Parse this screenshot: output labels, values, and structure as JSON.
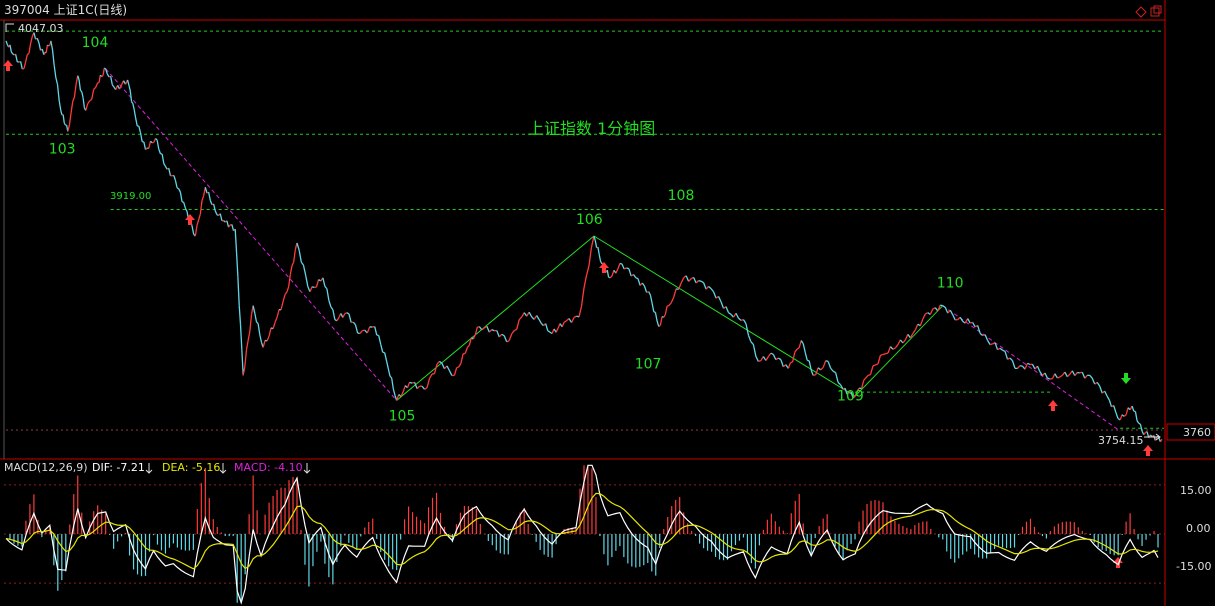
{
  "header": {
    "code_title": "397004 上证1C(日线)",
    "hi_marker": "4047.03",
    "window_icons": [
      "restore-icon",
      "maximize-icon"
    ]
  },
  "colors": {
    "up": "#ff3b3b",
    "down": "#5fd7e6",
    "dashed_level": "#22c922",
    "trend_green": "#22dd22",
    "trend_magenta": "#dd22dd",
    "label_green": "#22dd22",
    "dif_line": "#ffffff",
    "dea_line": "#e6e600",
    "axis_red": "#cc0000"
  },
  "main_panel": {
    "title": "上证指数 1分钟图",
    "level_label_3919": "3919.00",
    "wave_labels": [
      "103",
      "104",
      "105",
      "106",
      "107",
      "108",
      "109",
      "110"
    ],
    "axis_label_right": "3760",
    "last_price_label": "3754.15"
  },
  "macd_panel": {
    "name": "MACD(12,26,9)",
    "dif_label": "DIF: -7.21",
    "dea_label": "DEA: -5.16",
    "macd_label": "MACD: -4.10",
    "ticks": [
      "15.00",
      "0.00",
      "-15.00"
    ]
  },
  "chart_data": {
    "type": "line",
    "title": "上证指数 1分钟图",
    "price_points": [
      [
        0,
        4040
      ],
      [
        8,
        4030
      ],
      [
        18,
        4020
      ],
      [
        28,
        4046
      ],
      [
        38,
        4030
      ],
      [
        45,
        4040
      ],
      [
        55,
        3990
      ],
      [
        62,
        3975
      ],
      [
        72,
        4015
      ],
      [
        80,
        3990
      ],
      [
        92,
        4010
      ],
      [
        100,
        4020
      ],
      [
        110,
        4005
      ],
      [
        122,
        4012
      ],
      [
        130,
        3985
      ],
      [
        140,
        3962
      ],
      [
        150,
        3970
      ],
      [
        160,
        3950
      ],
      [
        170,
        3940
      ],
      [
        180,
        3920
      ],
      [
        190,
        3900
      ],
      [
        200,
        3935
      ],
      [
        210,
        3918
      ],
      [
        220,
        3910
      ],
      [
        230,
        3905
      ],
      [
        238,
        3800
      ],
      [
        248,
        3850
      ],
      [
        258,
        3820
      ],
      [
        270,
        3838
      ],
      [
        282,
        3860
      ],
      [
        292,
        3895
      ],
      [
        305,
        3860
      ],
      [
        318,
        3870
      ],
      [
        330,
        3840
      ],
      [
        342,
        3845
      ],
      [
        355,
        3830
      ],
      [
        370,
        3835
      ],
      [
        382,
        3810
      ],
      [
        392,
        3782
      ],
      [
        405,
        3795
      ],
      [
        420,
        3790
      ],
      [
        435,
        3810
      ],
      [
        450,
        3800
      ],
      [
        463,
        3820
      ],
      [
        475,
        3835
      ],
      [
        490,
        3832
      ],
      [
        505,
        3825
      ],
      [
        520,
        3845
      ],
      [
        535,
        3840
      ],
      [
        548,
        3830
      ],
      [
        560,
        3838
      ],
      [
        575,
        3842
      ],
      [
        590,
        3900
      ],
      [
        598,
        3880
      ],
      [
        606,
        3870
      ],
      [
        618,
        3880
      ],
      [
        632,
        3870
      ],
      [
        645,
        3860
      ],
      [
        655,
        3835
      ],
      [
        665,
        3850
      ],
      [
        680,
        3870
      ],
      [
        695,
        3868
      ],
      [
        710,
        3860
      ],
      [
        725,
        3845
      ],
      [
        740,
        3840
      ],
      [
        755,
        3810
      ],
      [
        770,
        3815
      ],
      [
        785,
        3805
      ],
      [
        798,
        3825
      ],
      [
        810,
        3800
      ],
      [
        825,
        3810
      ],
      [
        840,
        3790
      ],
      [
        852,
        3785
      ],
      [
        865,
        3800
      ],
      [
        880,
        3815
      ],
      [
        895,
        3822
      ],
      [
        910,
        3830
      ],
      [
        925,
        3845
      ],
      [
        940,
        3850
      ],
      [
        955,
        3840
      ],
      [
        970,
        3838
      ],
      [
        985,
        3825
      ],
      [
        1000,
        3818
      ],
      [
        1015,
        3805
      ],
      [
        1030,
        3808
      ],
      [
        1045,
        3798
      ],
      [
        1060,
        3800
      ],
      [
        1075,
        3802
      ],
      [
        1090,
        3798
      ],
      [
        1105,
        3785
      ],
      [
        1118,
        3768
      ],
      [
        1130,
        3778
      ],
      [
        1140,
        3760
      ],
      [
        1150,
        3756
      ],
      [
        1160,
        3754.15
      ]
    ],
    "levels": [
      4047.03,
      3973,
      3919.0,
      3788,
      3762
    ],
    "wave_points": [
      {
        "label": "103",
        "price": 3975
      },
      {
        "label": "104",
        "price": 4020
      },
      {
        "label": "105",
        "price": 3782
      },
      {
        "label": "106",
        "price": 3900
      },
      {
        "label": "107",
        "price": 3835
      },
      {
        "label": "108",
        "price": 3880
      },
      {
        "label": "109",
        "price": 3785
      },
      {
        "label": "110",
        "price": 3850
      }
    ],
    "ylim": [
      3745,
      4055
    ],
    "macd": {
      "dif": -7.21,
      "dea": -5.16,
      "macd": -4.1,
      "ylim": [
        -22,
        22
      ],
      "ticks": [
        15,
        0,
        -15
      ]
    }
  }
}
